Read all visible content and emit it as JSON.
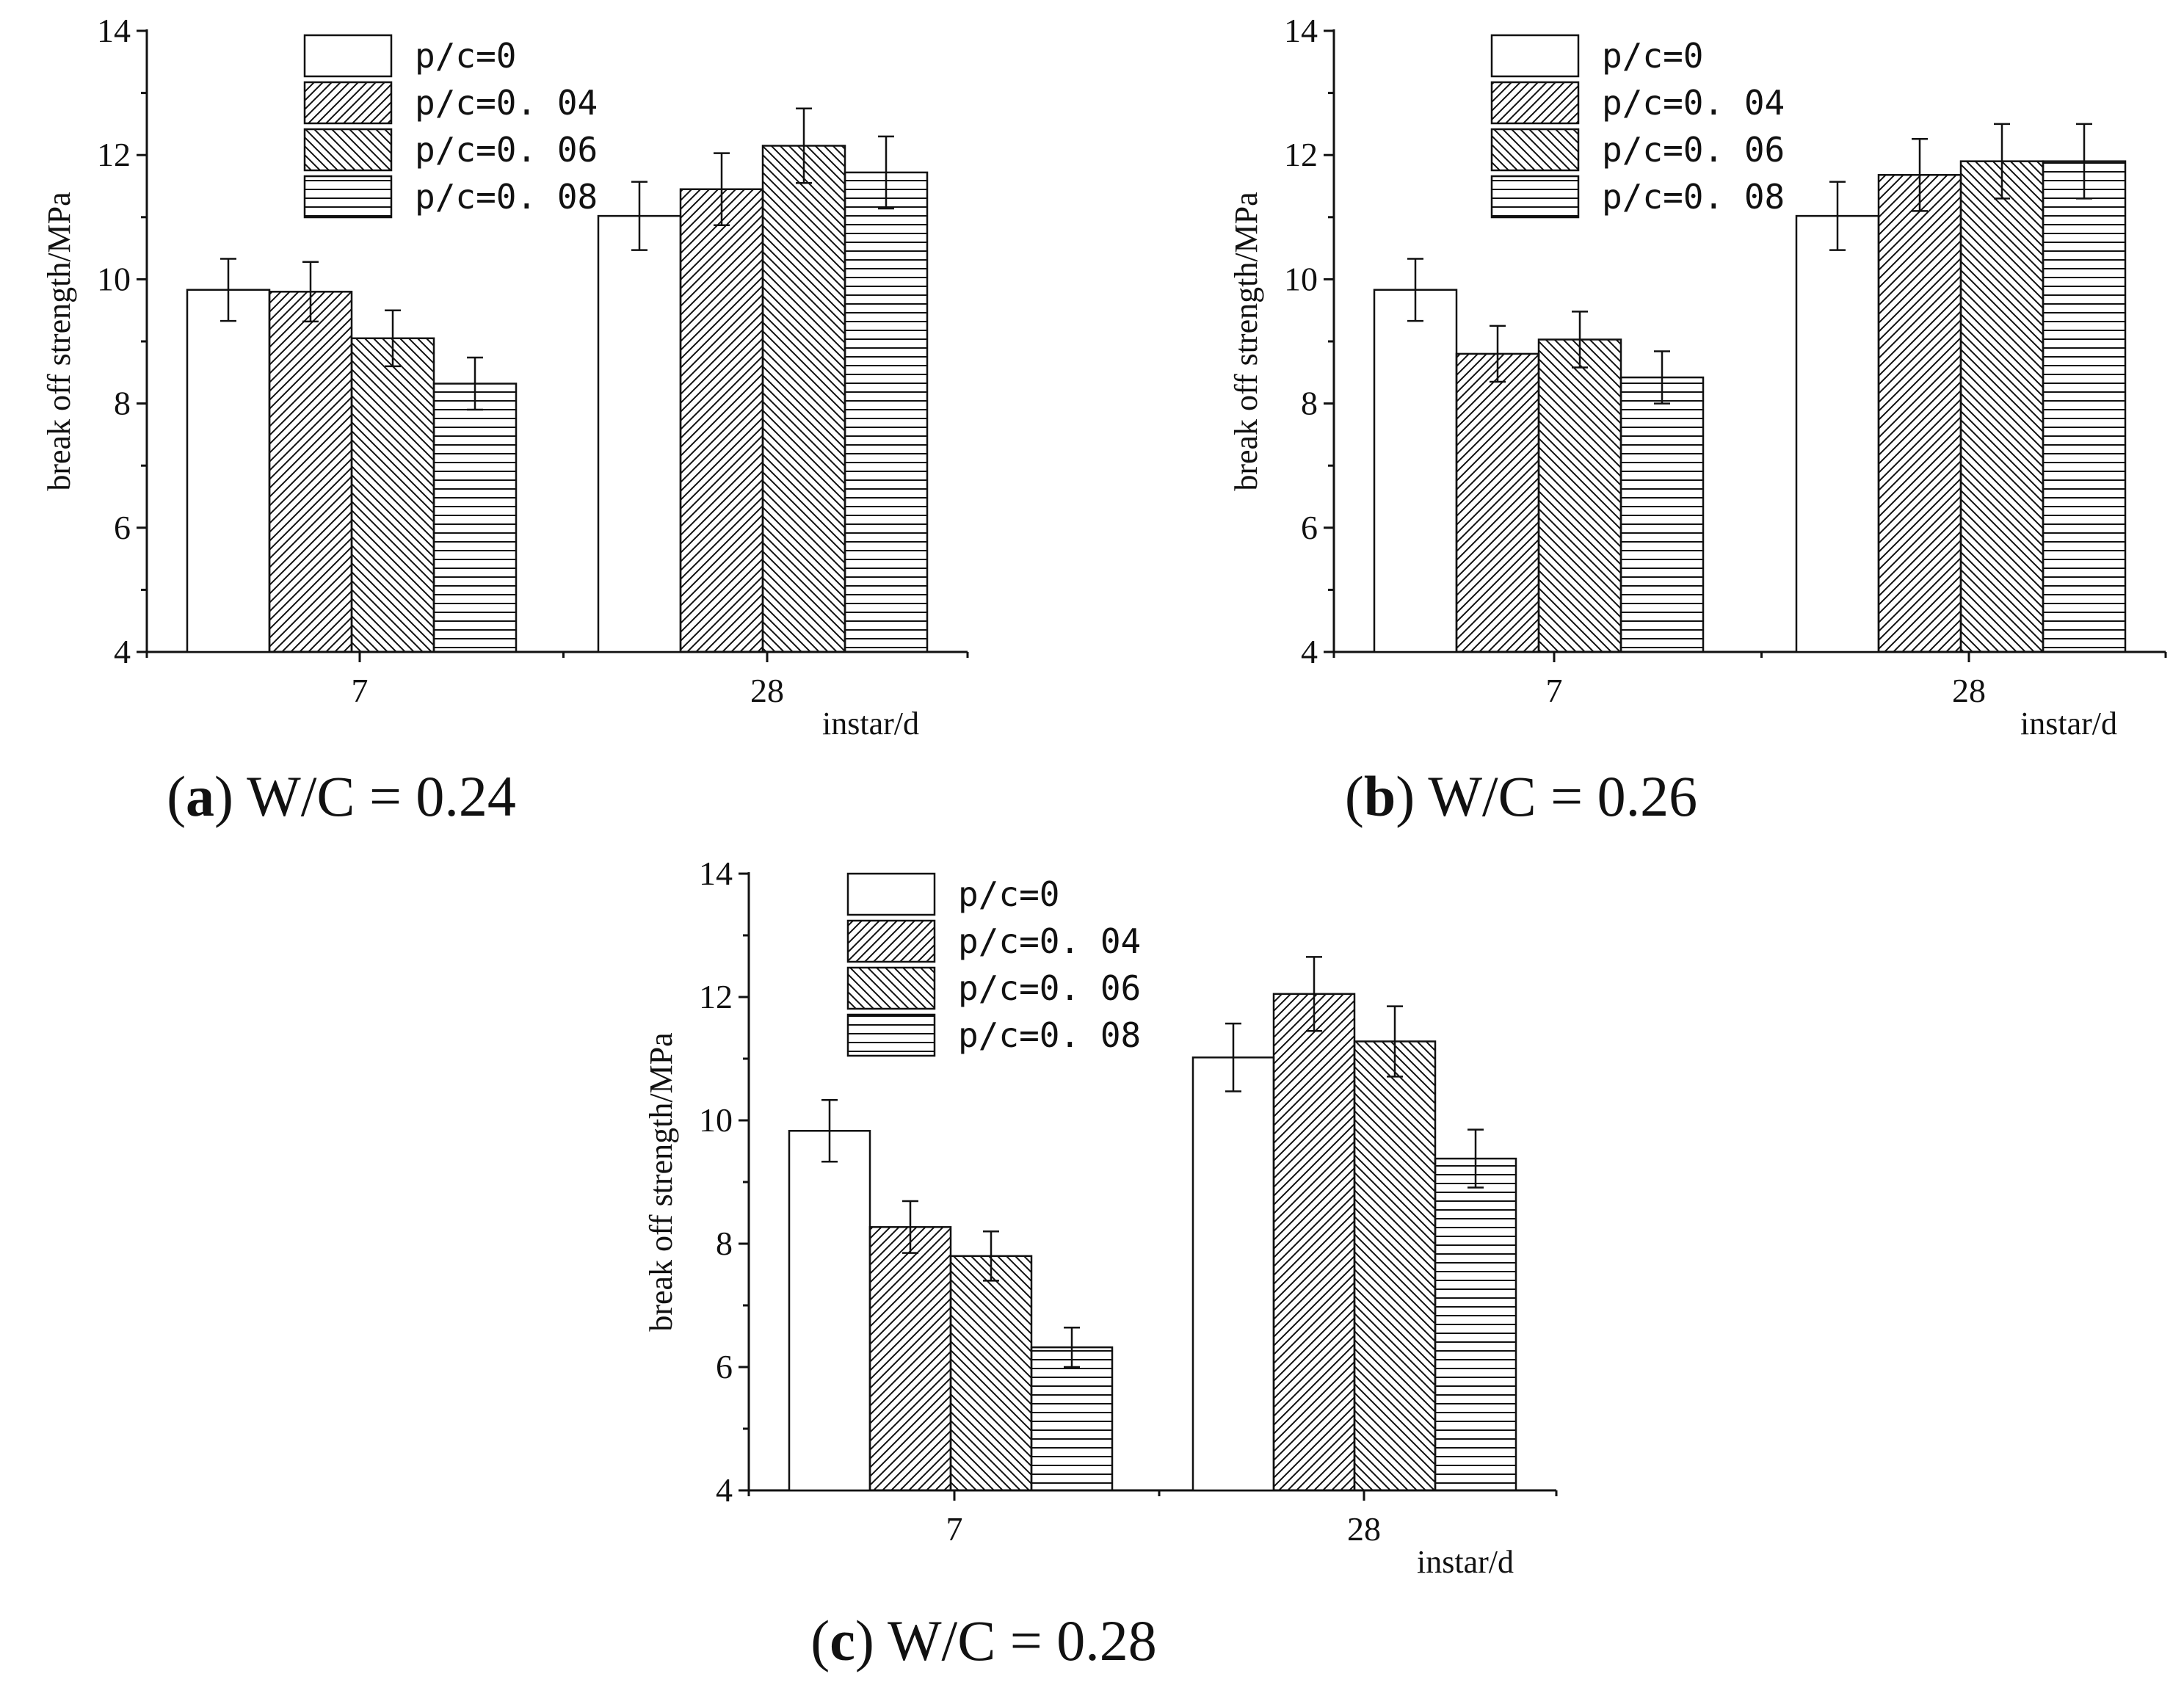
{
  "chart_data": [
    {
      "type": "bar",
      "panel_label": "a",
      "caption": "W/C = 0.24",
      "ylabel": "break off strength/MPa",
      "xlabel": "instar/d",
      "ylim": [
        4,
        14
      ],
      "yticks": [
        "4",
        "6",
        "8",
        "10",
        "12",
        "14"
      ],
      "categories": [
        "7",
        "28"
      ],
      "series": [
        {
          "name": "p/c=0",
          "values": [
            9.83,
            11.02
          ],
          "errors": [
            0.5,
            0.55
          ]
        },
        {
          "name": "p/c=0. 04",
          "values": [
            9.8,
            11.45
          ],
          "errors": [
            0.48,
            0.58
          ]
        },
        {
          "name": "p/c=0. 06",
          "values": [
            9.05,
            12.15
          ],
          "errors": [
            0.45,
            0.6
          ]
        },
        {
          "name": "p/c=0. 08",
          "values": [
            8.32,
            11.72
          ],
          "errors": [
            0.42,
            0.58
          ]
        }
      ]
    },
    {
      "type": "bar",
      "panel_label": "b",
      "caption": "W/C = 0.26",
      "ylabel": "break off strength/MPa",
      "xlabel": "instar/d",
      "ylim": [
        4,
        14
      ],
      "yticks": [
        "4",
        "6",
        "8",
        "10",
        "12",
        "14"
      ],
      "categories": [
        "7",
        "28"
      ],
      "series": [
        {
          "name": "p/c=0",
          "values": [
            9.83,
            11.02
          ],
          "errors": [
            0.5,
            0.55
          ]
        },
        {
          "name": "p/c=0. 04",
          "values": [
            8.8,
            11.68
          ],
          "errors": [
            0.45,
            0.58
          ]
        },
        {
          "name": "p/c=0. 06",
          "values": [
            9.03,
            11.9
          ],
          "errors": [
            0.45,
            0.6
          ]
        },
        {
          "name": "p/c=0. 08",
          "values": [
            8.42,
            11.9
          ],
          "errors": [
            0.42,
            0.6
          ]
        }
      ]
    },
    {
      "type": "bar",
      "panel_label": "c",
      "caption": "W/C = 0.28",
      "ylabel": "break off strength/MPa",
      "xlabel": "instar/d",
      "ylim": [
        4,
        14
      ],
      "yticks": [
        "4",
        "6",
        "8",
        "10",
        "12",
        "14"
      ],
      "categories": [
        "7",
        "28"
      ],
      "series": [
        {
          "name": "p/c=0",
          "values": [
            9.83,
            11.02
          ],
          "errors": [
            0.5,
            0.55
          ]
        },
        {
          "name": "p/c=0. 04",
          "values": [
            8.27,
            12.05
          ],
          "errors": [
            0.42,
            0.6
          ]
        },
        {
          "name": "p/c=0. 06",
          "values": [
            7.8,
            11.28
          ],
          "errors": [
            0.4,
            0.57
          ]
        },
        {
          "name": "p/c=0. 08",
          "values": [
            6.32,
            9.38
          ],
          "errors": [
            0.32,
            0.47
          ]
        }
      ]
    }
  ]
}
